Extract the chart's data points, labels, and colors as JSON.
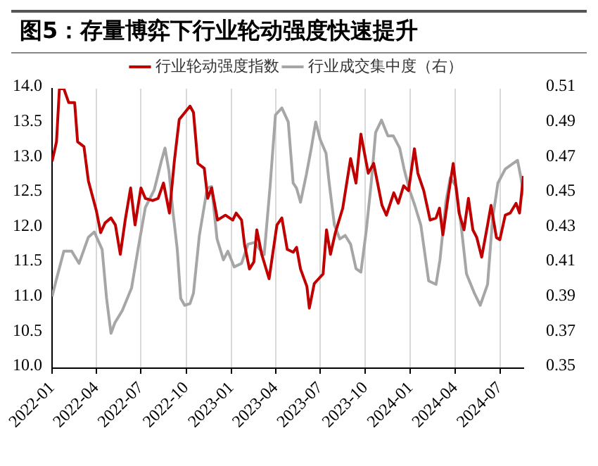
{
  "chart_data": {
    "type": "line",
    "title": "图5：存量博弈下行业轮动强度快速提升",
    "xlim": [
      "2022-01-01",
      "2024-08-18"
    ],
    "xticks": [
      "2022-01",
      "2022-04",
      "2022-07",
      "2022-10",
      "2023-01",
      "2023-04",
      "2023-07",
      "2023-10",
      "2024-01",
      "2024-04",
      "2024-07"
    ],
    "ylim": [
      10,
      14
    ],
    "yticks": [
      {
        "value": 10,
        "label": "10.0"
      },
      {
        "value": 10.5,
        "label": "10.5"
      },
      {
        "value": 11,
        "label": "11.0"
      },
      {
        "value": 11.5,
        "label": "11.5"
      },
      {
        "value": 12,
        "label": "12.0"
      },
      {
        "value": 12.5,
        "label": "12.5"
      },
      {
        "value": 13,
        "label": "13.0"
      },
      {
        "value": 13.5,
        "label": "13.5"
      },
      {
        "value": 14,
        "label": "14.0"
      }
    ],
    "y2lim": [
      0.35,
      0.51
    ],
    "y2ticks": [
      0.35,
      0.37,
      0.39,
      0.41,
      0.43,
      0.45,
      0.47,
      0.49,
      0.51
    ],
    "grid": "x",
    "legend": "top",
    "marker": "none",
    "series": [
      {
        "name": "行业轮动强度指数",
        "color": "#c00000",
        "x": [
          "2022-01-01",
          "2022-01-10",
          "2022-01-16",
          "2022-01-25",
          "2022-02-04",
          "2022-02-16",
          "2022-02-22",
          "2022-03-07",
          "2022-03-16",
          "2022-04-01",
          "2022-04-10",
          "2022-04-19",
          "2022-05-01",
          "2022-05-10",
          "2022-05-20",
          "2022-05-30",
          "2022-06-10",
          "2022-06-19",
          "2022-07-01",
          "2022-07-10",
          "2022-07-25",
          "2022-08-05",
          "2022-08-16",
          "2022-08-28",
          "2022-09-07",
          "2022-09-17",
          "2022-10-09",
          "2022-10-16",
          "2022-10-25",
          "2022-11-07",
          "2022-11-14",
          "2022-11-22",
          "2022-12-04",
          "2022-12-20",
          "2023-01-04",
          "2023-01-11",
          "2023-01-22",
          "2023-01-28",
          "2023-02-07",
          "2023-02-16",
          "2023-02-22",
          "2023-03-04",
          "2023-03-19",
          "2023-04-04",
          "2023-04-14",
          "2023-04-25",
          "2023-05-07",
          "2023-05-14",
          "2023-05-22",
          "2023-06-04",
          "2023-06-09",
          "2023-06-19",
          "2023-06-28",
          "2023-07-07",
          "2023-07-14",
          "2023-07-22",
          "2023-08-01",
          "2023-08-16",
          "2023-09-01",
          "2023-09-12",
          "2023-09-22",
          "2023-10-07",
          "2023-10-18",
          "2023-11-04",
          "2023-11-13",
          "2023-11-28",
          "2023-12-07",
          "2023-12-18",
          "2023-12-28",
          "2024-01-09",
          "2024-01-16",
          "2024-01-28",
          "2024-02-10",
          "2024-02-22",
          "2024-02-29",
          "2024-03-07",
          "2024-03-18",
          "2024-03-28",
          "2024-04-09",
          "2024-04-19",
          "2024-04-28",
          "2024-05-07",
          "2024-05-15",
          "2024-05-25",
          "2024-06-06",
          "2024-06-13",
          "2024-06-24",
          "2024-07-01",
          "2024-07-12",
          "2024-07-22",
          "2024-08-03",
          "2024-08-10",
          "2024-08-18"
        ],
        "values": [
          12.96,
          13.24,
          14.0,
          14.0,
          13.8,
          13.8,
          13.24,
          13.17,
          12.68,
          12.26,
          11.94,
          12.08,
          12.15,
          12.05,
          11.63,
          12.12,
          12.58,
          12.05,
          12.58,
          12.43,
          12.4,
          12.43,
          12.65,
          12.22,
          12.96,
          13.56,
          13.75,
          13.66,
          12.93,
          12.86,
          12.43,
          12.58,
          12.12,
          12.19,
          12.12,
          12.22,
          12.12,
          11.77,
          11.42,
          11.52,
          11.98,
          11.63,
          11.28,
          12.05,
          12.15,
          11.7,
          11.66,
          11.73,
          11.42,
          11.17,
          10.86,
          11.21,
          11.28,
          11.35,
          11.98,
          11.63,
          11.94,
          12.29,
          13.0,
          12.65,
          13.35,
          12.79,
          12.93,
          12.33,
          12.19,
          12.51,
          12.36,
          12.61,
          12.54,
          13.14,
          12.79,
          12.54,
          12.12,
          12.15,
          12.29,
          11.91,
          12.47,
          12.93,
          12.22,
          11.98,
          12.43,
          11.98,
          11.87,
          11.59,
          12.05,
          12.33,
          11.87,
          11.84,
          12.19,
          12.22,
          12.36,
          12.22,
          12.75
        ]
      },
      {
        "name": "行业成交集中度（右）",
        "color": "#a6a6a6",
        "axis": "y2",
        "x": [
          "2022-01-01",
          "2022-01-10",
          "2022-01-25",
          "2022-02-10",
          "2022-02-25",
          "2022-03-16",
          "2022-03-28",
          "2022-04-13",
          "2022-04-22",
          "2022-05-01",
          "2022-05-09",
          "2022-05-24",
          "2022-06-12",
          "2022-06-25",
          "2022-07-10",
          "2022-07-28",
          "2022-08-12",
          "2022-08-19",
          "2022-08-27",
          "2022-09-04",
          "2022-09-13",
          "2022-09-20",
          "2022-09-28",
          "2022-10-09",
          "2022-10-16",
          "2022-10-28",
          "2022-11-13",
          "2022-11-22",
          "2022-12-03",
          "2022-12-16",
          "2022-12-25",
          "2023-01-07",
          "2023-01-22",
          "2023-02-04",
          "2023-02-18",
          "2023-02-28",
          "2023-03-09",
          "2023-03-21",
          "2023-04-01",
          "2023-04-14",
          "2023-04-27",
          "2023-05-07",
          "2023-05-14",
          "2023-05-22",
          "2023-06-03",
          "2023-06-13",
          "2023-06-22",
          "2023-07-01",
          "2023-07-13",
          "2023-07-19",
          "2023-07-30",
          "2023-08-10",
          "2023-08-21",
          "2023-09-01",
          "2023-09-12",
          "2023-09-22",
          "2023-10-03",
          "2023-10-13",
          "2023-10-22",
          "2023-11-03",
          "2023-11-16",
          "2023-11-27",
          "2023-12-10",
          "2023-12-19",
          "2023-12-30",
          "2024-01-10",
          "2024-01-22",
          "2024-02-07",
          "2024-02-22",
          "2024-03-01",
          "2024-03-13",
          "2024-03-22",
          "2024-04-03",
          "2024-04-13",
          "2024-04-24",
          "2024-05-10",
          "2024-05-22",
          "2024-06-06",
          "2024-06-16",
          "2024-06-27",
          "2024-07-12",
          "2024-07-27",
          "2024-08-06",
          "2024-08-13",
          "2024-08-18"
        ],
        "values": [
          0.391,
          0.401,
          0.417,
          0.417,
          0.41,
          0.425,
          0.428,
          0.418,
          0.39,
          0.37,
          0.376,
          0.383,
          0.396,
          0.418,
          0.442,
          0.452,
          0.469,
          0.476,
          0.463,
          0.44,
          0.418,
          0.39,
          0.386,
          0.387,
          0.393,
          0.426,
          0.453,
          0.454,
          0.424,
          0.412,
          0.417,
          0.408,
          0.41,
          0.421,
          0.422,
          0.418,
          0.415,
          0.454,
          0.495,
          0.499,
          0.491,
          0.456,
          0.453,
          0.445,
          0.461,
          0.476,
          0.491,
          0.481,
          0.473,
          0.457,
          0.432,
          0.424,
          0.426,
          0.421,
          0.407,
          0.405,
          0.429,
          0.456,
          0.485,
          0.492,
          0.483,
          0.483,
          0.476,
          0.464,
          0.452,
          0.443,
          0.432,
          0.4,
          0.398,
          0.412,
          0.445,
          0.459,
          0.454,
          0.432,
          0.404,
          0.393,
          0.386,
          0.398,
          0.435,
          0.456,
          0.464,
          0.467,
          0.469,
          0.459,
          0.449
        ]
      }
    ]
  }
}
